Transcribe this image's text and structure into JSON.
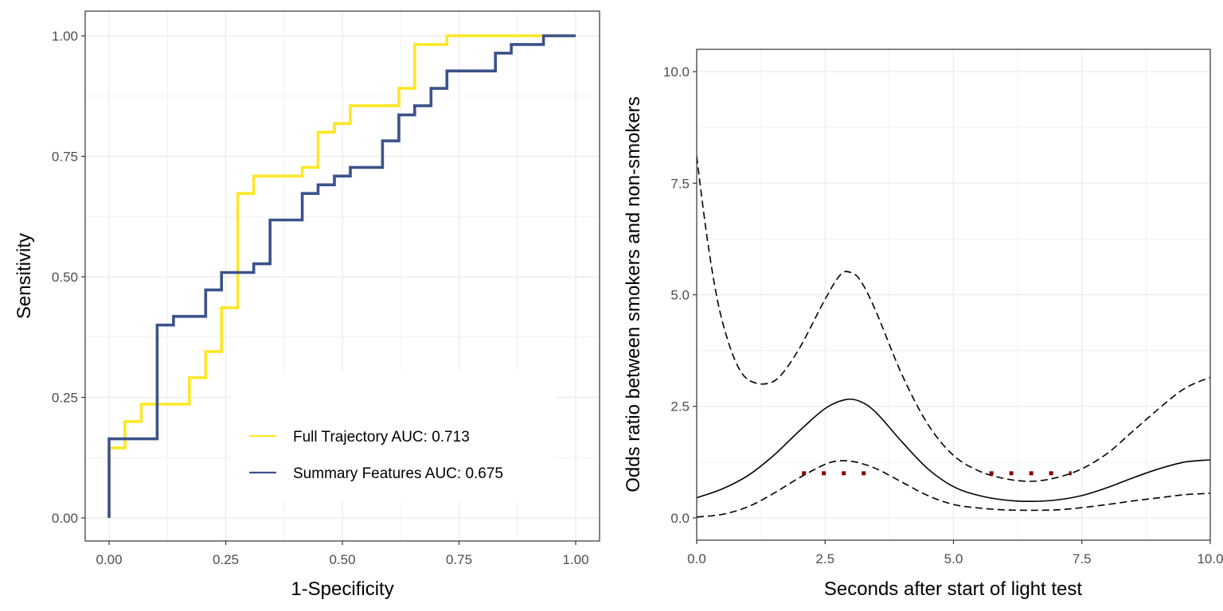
{
  "chart_data": [
    {
      "type": "line",
      "subtype": "step",
      "xlabel": "1-Specificity",
      "ylabel": "Sensitivity",
      "xlim": [
        0,
        1
      ],
      "ylim": [
        0,
        1
      ],
      "x_ticks": [
        "0.00",
        "0.25",
        "0.50",
        "0.75",
        "1.00"
      ],
      "y_ticks": [
        "0.00",
        "0.25",
        "0.50",
        "0.75",
        "1.00"
      ],
      "grid": true,
      "legend_position": "bottom-right",
      "series": [
        {
          "name": "Full Trajectory AUC: 0.713",
          "color": "#FDE725",
          "points": [
            [
              0,
              0
            ],
            [
              0,
              0.145
            ],
            [
              0.034,
              0.145
            ],
            [
              0.034,
              0.2
            ],
            [
              0.069,
              0.2
            ],
            [
              0.069,
              0.236
            ],
            [
              0.172,
              0.236
            ],
            [
              0.172,
              0.291
            ],
            [
              0.207,
              0.291
            ],
            [
              0.207,
              0.345
            ],
            [
              0.241,
              0.345
            ],
            [
              0.241,
              0.436
            ],
            [
              0.276,
              0.436
            ],
            [
              0.276,
              0.673
            ],
            [
              0.31,
              0.673
            ],
            [
              0.31,
              0.709
            ],
            [
              0.414,
              0.709
            ],
            [
              0.414,
              0.727
            ],
            [
              0.448,
              0.727
            ],
            [
              0.448,
              0.8
            ],
            [
              0.483,
              0.8
            ],
            [
              0.483,
              0.818
            ],
            [
              0.517,
              0.818
            ],
            [
              0.517,
              0.855
            ],
            [
              0.621,
              0.855
            ],
            [
              0.621,
              0.891
            ],
            [
              0.655,
              0.891
            ],
            [
              0.655,
              0.982
            ],
            [
              0.724,
              0.982
            ],
            [
              0.724,
              1
            ],
            [
              0.931,
              1
            ],
            [
              1,
              1
            ]
          ]
        },
        {
          "name": "Summary Features AUC: 0.675",
          "color": "#3B528B",
          "points": [
            [
              0,
              0
            ],
            [
              0,
              0.164
            ],
            [
              0.103,
              0.164
            ],
            [
              0.103,
              0.4
            ],
            [
              0.138,
              0.4
            ],
            [
              0.138,
              0.418
            ],
            [
              0.207,
              0.418
            ],
            [
              0.207,
              0.473
            ],
            [
              0.241,
              0.473
            ],
            [
              0.241,
              0.509
            ],
            [
              0.31,
              0.509
            ],
            [
              0.31,
              0.527
            ],
            [
              0.345,
              0.527
            ],
            [
              0.345,
              0.618
            ],
            [
              0.414,
              0.618
            ],
            [
              0.414,
              0.673
            ],
            [
              0.448,
              0.673
            ],
            [
              0.448,
              0.691
            ],
            [
              0.483,
              0.691
            ],
            [
              0.483,
              0.709
            ],
            [
              0.517,
              0.709
            ],
            [
              0.517,
              0.727
            ],
            [
              0.586,
              0.727
            ],
            [
              0.586,
              0.782
            ],
            [
              0.621,
              0.782
            ],
            [
              0.621,
              0.836
            ],
            [
              0.655,
              0.836
            ],
            [
              0.655,
              0.855
            ],
            [
              0.69,
              0.855
            ],
            [
              0.69,
              0.891
            ],
            [
              0.724,
              0.891
            ],
            [
              0.724,
              0.927
            ],
            [
              0.828,
              0.927
            ],
            [
              0.828,
              0.964
            ],
            [
              0.862,
              0.964
            ],
            [
              0.862,
              0.982
            ],
            [
              0.931,
              0.982
            ],
            [
              0.931,
              1
            ],
            [
              1,
              1
            ]
          ]
        }
      ]
    },
    {
      "type": "line",
      "xlabel": "Seconds after start of light test",
      "ylabel": "Odds ratio between smokers and non-smokers",
      "xlim": [
        0,
        10
      ],
      "ylim": [
        -0.5,
        10.5
      ],
      "x_ticks": [
        "0.0",
        "2.5",
        "5.0",
        "7.5",
        "10.0"
      ],
      "y_ticks": [
        "0.0",
        "2.5",
        "5.0",
        "7.5",
        "10.0"
      ],
      "grid": true,
      "series": [
        {
          "name": "estimate",
          "style": "solid",
          "color": "#000000",
          "x": [
            0,
            0.5,
            1,
            1.5,
            2,
            2.5,
            2.9,
            3.2,
            3.5,
            4,
            4.5,
            5,
            5.5,
            6,
            6.5,
            7,
            7.5,
            8,
            8.5,
            9,
            9.5,
            10
          ],
          "y": [
            0.45,
            0.65,
            0.95,
            1.4,
            1.95,
            2.45,
            2.65,
            2.6,
            2.35,
            1.7,
            1.1,
            0.7,
            0.5,
            0.4,
            0.37,
            0.4,
            0.5,
            0.68,
            0.9,
            1.1,
            1.25,
            1.3
          ]
        },
        {
          "name": "upper bound",
          "style": "dashed",
          "color": "#000000",
          "x": [
            0,
            0.2,
            0.4,
            0.6,
            0.8,
            1,
            1.3,
            1.6,
            2,
            2.5,
            2.8,
            3,
            3.2,
            3.5,
            4,
            4.5,
            5,
            5.5,
            6,
            6.5,
            7,
            7.5,
            8,
            8.5,
            9,
            9.5,
            10
          ],
          "y": [
            8.1,
            6.3,
            4.9,
            4,
            3.4,
            3.1,
            3,
            3.15,
            3.8,
            4.9,
            5.45,
            5.5,
            5.3,
            4.6,
            3.2,
            2.1,
            1.4,
            1.05,
            0.88,
            0.82,
            0.9,
            1.1,
            1.45,
            1.95,
            2.45,
            2.9,
            3.15
          ]
        },
        {
          "name": "lower bound",
          "style": "dashed",
          "color": "#000000",
          "x": [
            0,
            0.5,
            1,
            1.5,
            2,
            2.5,
            2.8,
            3.1,
            3.5,
            4,
            4.5,
            5,
            5.5,
            6,
            6.5,
            7,
            7.5,
            8,
            8.5,
            9,
            9.5,
            10
          ],
          "y": [
            0.02,
            0.08,
            0.25,
            0.55,
            0.9,
            1.2,
            1.28,
            1.25,
            1.1,
            0.8,
            0.5,
            0.3,
            0.22,
            0.18,
            0.17,
            0.18,
            0.23,
            0.3,
            0.38,
            0.45,
            0.52,
            0.55
          ]
        }
      ],
      "markers": {
        "style": "dotted",
        "color": "#8B0000",
        "segments": [
          {
            "x": [
              2.05,
              3.6
            ],
            "y": 1
          },
          {
            "x": [
              5.7,
              7.3
            ],
            "y": 1
          }
        ]
      }
    }
  ]
}
